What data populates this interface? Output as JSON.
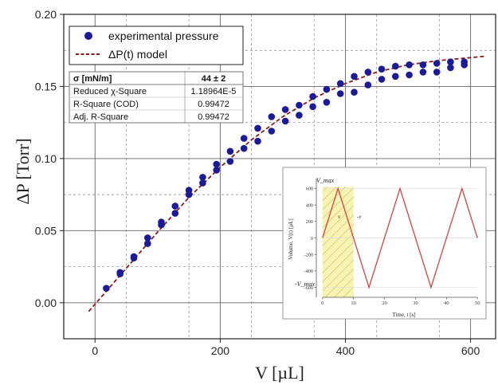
{
  "chart_data": [
    {
      "type": "scatter",
      "xlabel": "V [µL]",
      "ylabel": "ΔP [Torr]",
      "xlim": [
        -50,
        640
      ],
      "ylim": [
        -0.025,
        0.2
      ],
      "x_ticks": [
        "0",
        "200",
        "400",
        "600"
      ],
      "y_ticks": [
        "0.00",
        "0.05",
        "0.10",
        "0.15",
        "0.20"
      ],
      "grid": "major solid, minor dashed",
      "legend_position": "top-left",
      "series": [
        {
          "name": "experimental pressure",
          "marker": "circle",
          "color": "#1a1a9a",
          "points": [
            [
              18,
              0.01
            ],
            [
              40,
              0.02
            ],
            [
              40,
              0.021
            ],
            [
              62,
              0.031
            ],
            [
              62,
              0.032
            ],
            [
              84,
              0.041
            ],
            [
              84,
              0.045
            ],
            [
              106,
              0.054
            ],
            [
              106,
              0.056
            ],
            [
              128,
              0.062
            ],
            [
              128,
              0.067
            ],
            [
              150,
              0.075
            ],
            [
              150,
              0.078
            ],
            [
              172,
              0.083
            ],
            [
              172,
              0.087
            ],
            [
              194,
              0.092
            ],
            [
              194,
              0.096
            ],
            [
              216,
              0.098
            ],
            [
              216,
              0.105
            ],
            [
              238,
              0.107
            ],
            [
              238,
              0.114
            ],
            [
              260,
              0.112
            ],
            [
              260,
              0.121
            ],
            [
              282,
              0.119
            ],
            [
              282,
              0.129
            ],
            [
              304,
              0.126
            ],
            [
              304,
              0.134
            ],
            [
              326,
              0.13
            ],
            [
              326,
              0.137
            ],
            [
              348,
              0.136
            ],
            [
              348,
              0.143
            ],
            [
              370,
              0.139
            ],
            [
              370,
              0.148
            ],
            [
              392,
              0.145
            ],
            [
              392,
              0.152
            ],
            [
              414,
              0.146
            ],
            [
              414,
              0.157
            ],
            [
              436,
              0.151
            ],
            [
              436,
              0.16
            ],
            [
              458,
              0.155
            ],
            [
              458,
              0.162
            ],
            [
              480,
              0.157
            ],
            [
              480,
              0.164
            ],
            [
              502,
              0.158
            ],
            [
              502,
              0.165
            ],
            [
              524,
              0.16
            ],
            [
              524,
              0.165
            ],
            [
              546,
              0.16
            ],
            [
              546,
              0.166
            ],
            [
              568,
              0.163
            ],
            [
              568,
              0.167
            ],
            [
              590,
              0.165
            ],
            [
              590,
              0.167
            ]
          ]
        },
        {
          "name": "ΔP(t) model",
          "style": "dashed",
          "color": "#8b1a1a",
          "points": [
            [
              -10,
              -0.006
            ],
            [
              0,
              -0.001
            ],
            [
              50,
              0.024
            ],
            [
              100,
              0.049
            ],
            [
              150,
              0.073
            ],
            [
              200,
              0.094
            ],
            [
              250,
              0.113
            ],
            [
              300,
              0.129
            ],
            [
              350,
              0.142
            ],
            [
              400,
              0.152
            ],
            [
              450,
              0.16
            ],
            [
              500,
              0.165
            ],
            [
              550,
              0.168
            ],
            [
              600,
              0.17
            ],
            [
              625,
              0.171
            ]
          ]
        }
      ],
      "fit_table": {
        "header": [
          "σ [mN/m]",
          "44 ± 2"
        ],
        "rows": [
          [
            "Reduced χ-Square",
            "1.18964E-5"
          ],
          [
            "R-Square (COD)",
            "0.99472"
          ],
          [
            "Adj. R-Square",
            "0.99472"
          ]
        ]
      }
    },
    {
      "type": "line",
      "xlabel": "Time, t [s]",
      "ylabel": "Volume, V(t) [µL]",
      "xlim": [
        -2,
        52
      ],
      "ylim": [
        -720,
        720
      ],
      "x_ticks": [
        "0",
        "10",
        "20",
        "30",
        "40",
        "50"
      ],
      "y_ticks": [
        "600",
        "400",
        "200",
        "0",
        "-200",
        "-400",
        "-600"
      ],
      "annotations": [
        "V_max",
        "-V_max",
        "v",
        "-v"
      ],
      "highlight_range_x": [
        0,
        10
      ],
      "series": [
        {
          "name": "",
          "color": "#cc4444",
          "points": [
            [
              0,
              0
            ],
            [
              5,
              600
            ],
            [
              15,
              -600
            ],
            [
              25,
              600
            ],
            [
              35,
              -600
            ],
            [
              45,
              600
            ],
            [
              50,
              0
            ]
          ]
        }
      ]
    }
  ]
}
